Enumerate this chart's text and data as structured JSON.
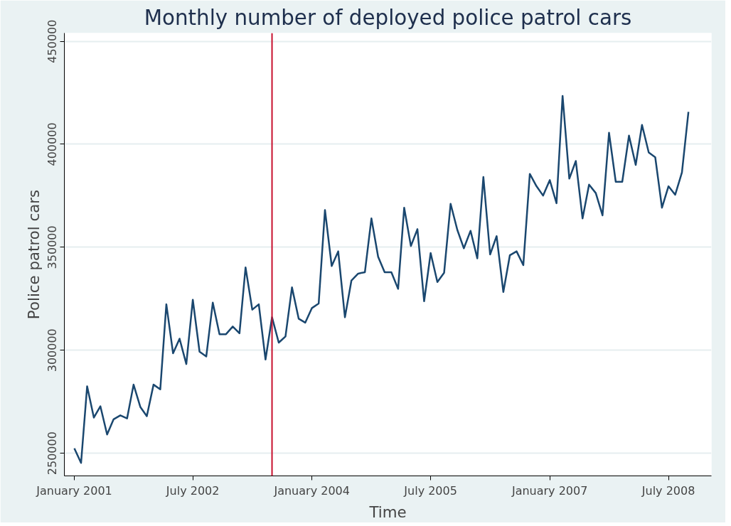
{
  "chart_data": {
    "type": "line",
    "title": "Monthly number of deployed police patrol cars",
    "xlabel": "Time",
    "ylabel": "Police patrol cars",
    "x": [
      "2001-01",
      "2001-02",
      "2001-03",
      "2001-04",
      "2001-05",
      "2001-06",
      "2001-07",
      "2001-08",
      "2001-09",
      "2001-10",
      "2001-11",
      "2001-12",
      "2002-01",
      "2002-02",
      "2002-03",
      "2002-04",
      "2002-05",
      "2002-06",
      "2002-07",
      "2002-08",
      "2002-09",
      "2002-10",
      "2002-11",
      "2002-12",
      "2003-01",
      "2003-02",
      "2003-03",
      "2003-04",
      "2003-05",
      "2003-06",
      "2003-07",
      "2003-08",
      "2003-09",
      "2003-10",
      "2003-11",
      "2003-12",
      "2004-01",
      "2004-02",
      "2004-03",
      "2004-04",
      "2004-05",
      "2004-06",
      "2004-07",
      "2004-08",
      "2004-09",
      "2004-10",
      "2004-11",
      "2004-12",
      "2005-01",
      "2005-02",
      "2005-03",
      "2005-04",
      "2005-05",
      "2005-06",
      "2005-07",
      "2005-08",
      "2005-09",
      "2005-10",
      "2005-11",
      "2005-12",
      "2006-01",
      "2006-02",
      "2006-03",
      "2006-04",
      "2006-05",
      "2006-06",
      "2006-07",
      "2006-08",
      "2006-09",
      "2006-10",
      "2006-11",
      "2006-12",
      "2007-01",
      "2007-02",
      "2007-03",
      "2007-04",
      "2007-05",
      "2007-06",
      "2007-07",
      "2007-08",
      "2007-09",
      "2007-10",
      "2007-11",
      "2007-12",
      "2008-01",
      "2008-02",
      "2008-03",
      "2008-04",
      "2008-05",
      "2008-06",
      "2008-07",
      "2008-08",
      "2008-09",
      "2008-10"
    ],
    "series": [
      {
        "color": "#1a476f",
        "values": [
          252400,
          245300,
          282500,
          267300,
          272800,
          259100,
          266500,
          268400,
          266900,
          283300,
          272500,
          268000,
          283300,
          281000,
          322300,
          298500,
          305600,
          293300,
          324500,
          299300,
          297000,
          323100,
          307800,
          307800,
          311500,
          308200,
          340200,
          319700,
          322300,
          295500,
          316000,
          303700,
          306700,
          330500,
          315300,
          313400,
          320500,
          322700,
          368100,
          340900,
          348000,
          316000,
          333900,
          337200,
          337900,
          364000,
          345400,
          337900,
          337900,
          329800,
          369200,
          350600,
          358800,
          323800,
          347200,
          333100,
          337600,
          371100,
          358400,
          349500,
          358000,
          344600,
          384100,
          346500,
          355400,
          328300,
          346100,
          348000,
          341300,
          385600,
          379600,
          375100,
          382600,
          371400,
          423500,
          383300,
          391900,
          364000,
          380400,
          376300,
          365500,
          405600,
          381800,
          381800,
          404200,
          390000,
          409400,
          396000,
          393700,
          369200,
          379600,
          375500,
          386300,
          415700
        ]
      }
    ],
    "xlim": [
      "2000-11-16",
      "2009-01-15"
    ],
    "xticks": [
      {
        "value": "2001-01",
        "label": "January 2001"
      },
      {
        "value": "2002-07",
        "label": "July 2002"
      },
      {
        "value": "2004-01",
        "label": "January 2004"
      },
      {
        "value": "2005-07",
        "label": "July 2005"
      },
      {
        "value": "2007-01",
        "label": "January 2007"
      },
      {
        "value": "2008-07",
        "label": "July 2008"
      }
    ],
    "ylim": [
      239000,
      454000
    ],
    "yticks": [
      250000,
      300000,
      350000,
      400000,
      450000
    ],
    "ref_lines": [
      {
        "axis": "x",
        "value": "2003-07",
        "color": "#c8102e"
      }
    ],
    "grid": "y"
  }
}
